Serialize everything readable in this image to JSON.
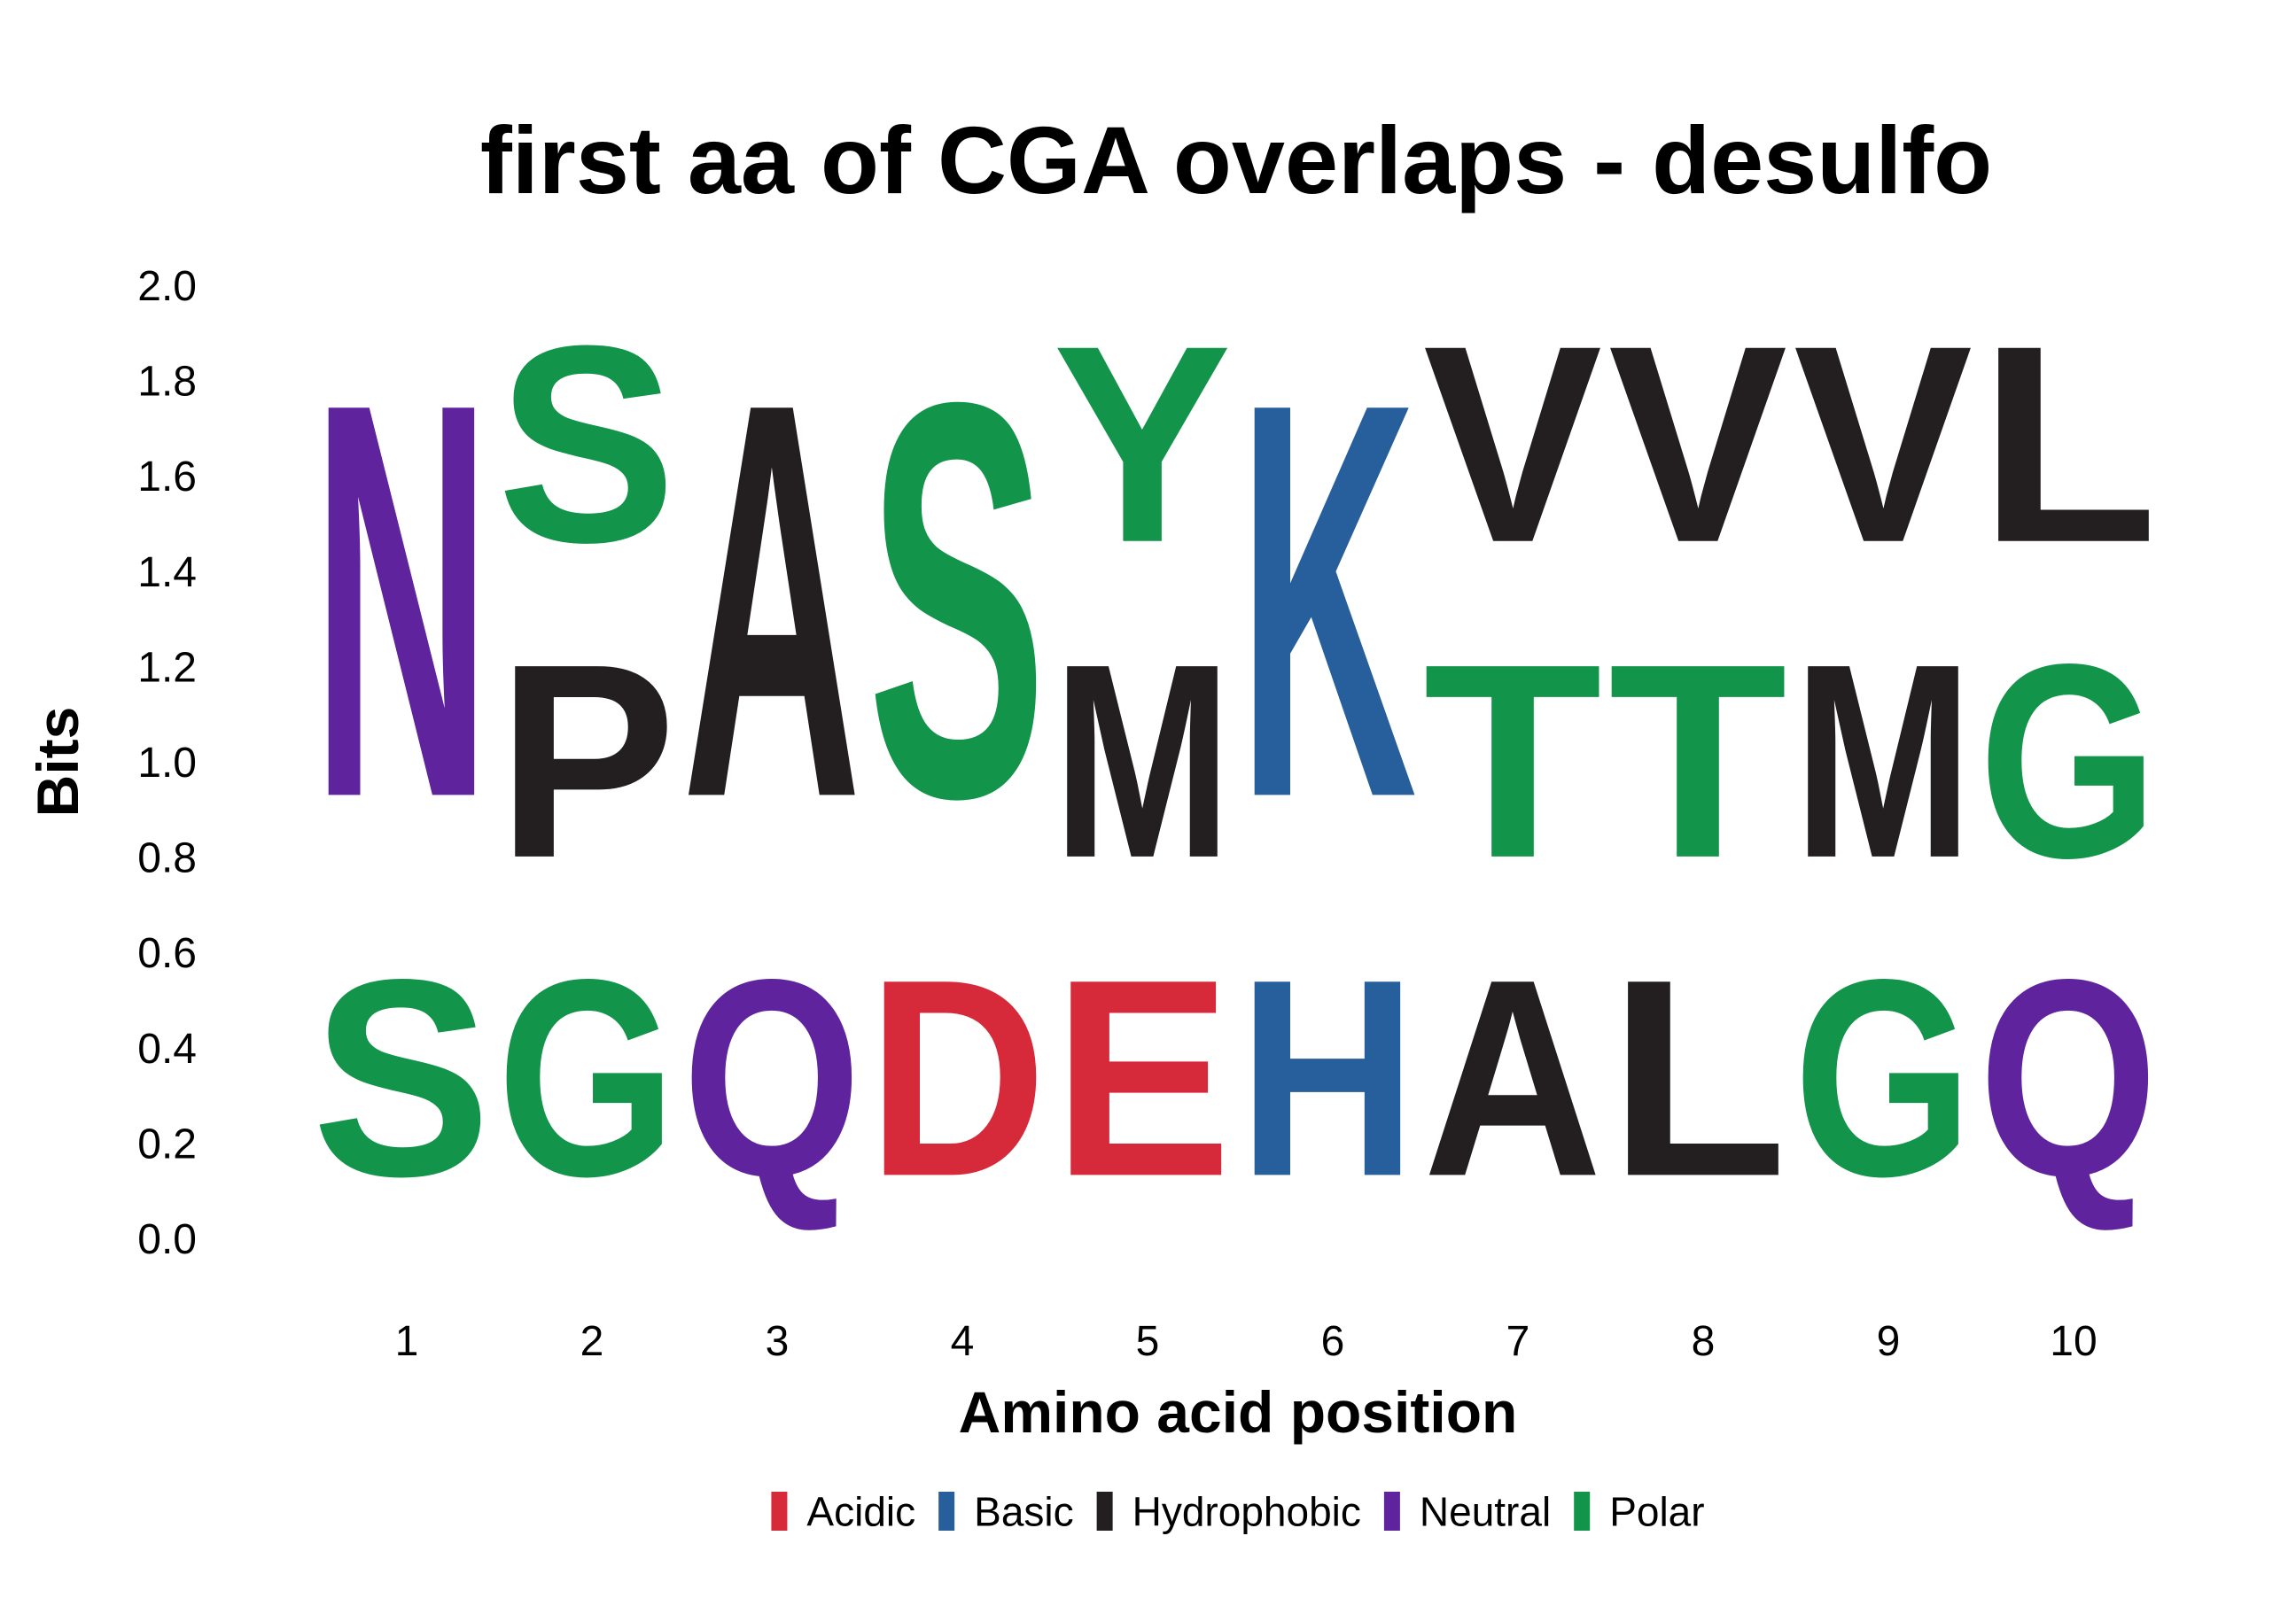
{
  "chart_data": {
    "type": "sequence-logo",
    "title": "first aa of CGA overlaps - desulfo",
    "xlabel": "Amino acid position",
    "ylabel": "Bits",
    "ylim": [
      0,
      2.0
    ],
    "yticks": [
      "0.0",
      "0.2",
      "0.4",
      "0.6",
      "0.8",
      "1.0",
      "1.2",
      "1.4",
      "1.6",
      "1.8",
      "2.0"
    ],
    "positions": [
      {
        "label": "1",
        "stack": [
          {
            "letter": "S",
            "bits": 0.67,
            "group": "Polar"
          },
          {
            "letter": "N",
            "bits": 1.33,
            "group": "Neutral"
          }
        ]
      },
      {
        "label": "2",
        "stack": [
          {
            "letter": "G",
            "bits": 0.67,
            "group": "Polar"
          },
          {
            "letter": "P",
            "bits": 0.66,
            "group": "Hydrophobic"
          },
          {
            "letter": "S",
            "bits": 0.67,
            "group": "Polar"
          }
        ]
      },
      {
        "label": "3",
        "stack": [
          {
            "letter": "Q",
            "bits": 0.67,
            "group": "Neutral"
          },
          {
            "letter": "A",
            "bits": 1.33,
            "group": "Hydrophobic"
          }
        ]
      },
      {
        "label": "4",
        "stack": [
          {
            "letter": "D",
            "bits": 0.67,
            "group": "Acidic"
          },
          {
            "letter": "S",
            "bits": 1.33,
            "group": "Polar"
          }
        ]
      },
      {
        "label": "5",
        "stack": [
          {
            "letter": "E",
            "bits": 0.67,
            "group": "Acidic"
          },
          {
            "letter": "M",
            "bits": 0.66,
            "group": "Hydrophobic"
          },
          {
            "letter": "Y",
            "bits": 0.67,
            "group": "Polar"
          }
        ]
      },
      {
        "label": "6",
        "stack": [
          {
            "letter": "H",
            "bits": 0.67,
            "group": "Basic"
          },
          {
            "letter": "K",
            "bits": 1.33,
            "group": "Basic"
          }
        ]
      },
      {
        "label": "7",
        "stack": [
          {
            "letter": "A",
            "bits": 0.67,
            "group": "Hydrophobic"
          },
          {
            "letter": "T",
            "bits": 0.66,
            "group": "Polar"
          },
          {
            "letter": "V",
            "bits": 0.67,
            "group": "Hydrophobic"
          }
        ]
      },
      {
        "label": "8",
        "stack": [
          {
            "letter": "L",
            "bits": 0.67,
            "group": "Hydrophobic"
          },
          {
            "letter": "T",
            "bits": 0.66,
            "group": "Polar"
          },
          {
            "letter": "V",
            "bits": 0.67,
            "group": "Hydrophobic"
          }
        ]
      },
      {
        "label": "9",
        "stack": [
          {
            "letter": "G",
            "bits": 0.67,
            "group": "Polar"
          },
          {
            "letter": "M",
            "bits": 0.66,
            "group": "Hydrophobic"
          },
          {
            "letter": "V",
            "bits": 0.67,
            "group": "Hydrophobic"
          }
        ]
      },
      {
        "label": "10",
        "stack": [
          {
            "letter": "Q",
            "bits": 0.67,
            "group": "Neutral"
          },
          {
            "letter": "G",
            "bits": 0.66,
            "group": "Polar"
          },
          {
            "letter": "L",
            "bits": 0.67,
            "group": "Hydrophobic"
          }
        ]
      }
    ],
    "legend": [
      {
        "name": "Acidic",
        "color": "#d62a3a"
      },
      {
        "name": "Basic",
        "color": "#275e9c"
      },
      {
        "name": "Hydrophobic",
        "color": "#231f20"
      },
      {
        "name": "Neutral",
        "color": "#5e239d"
      },
      {
        "name": "Polar",
        "color": "#12954a"
      }
    ],
    "legend_position": "bottom",
    "grid": false
  }
}
